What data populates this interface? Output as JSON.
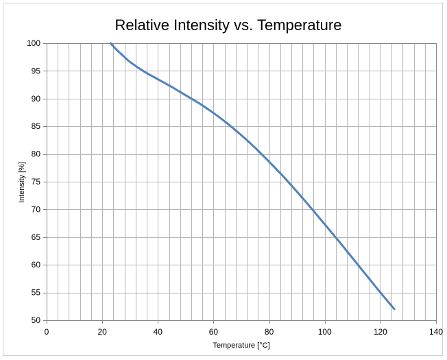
{
  "chart_data": {
    "type": "line",
    "title": "Relative Intensity vs. Temperature",
    "xlabel": "Temperature  [°C]",
    "ylabel": "Intensity [%]",
    "xlim": [
      0,
      140
    ],
    "ylim": [
      50,
      100
    ],
    "x_ticks": [
      0,
      20,
      40,
      60,
      80,
      100,
      120,
      140
    ],
    "y_ticks": [
      50,
      55,
      60,
      65,
      70,
      75,
      80,
      85,
      90,
      95,
      100
    ],
    "x_minor_step": 4,
    "y_minor_step": 5,
    "grid": true,
    "line_color": "#4f81bd",
    "series": [
      {
        "x": [
          23,
          25,
          28,
          30,
          35,
          40,
          45,
          50,
          55,
          60,
          65,
          70,
          75,
          80,
          85,
          90,
          95,
          100,
          105,
          110,
          115,
          120,
          125
        ],
        "y": [
          100,
          98.9,
          97.5,
          96.6,
          94.9,
          93.5,
          92.1,
          90.6,
          89.1,
          87.4,
          85.5,
          83.4,
          81.1,
          78.6,
          76.0,
          73.2,
          70.3,
          67.3,
          64.3,
          61.2,
          58.1,
          55.0,
          52.0
        ]
      }
    ]
  }
}
